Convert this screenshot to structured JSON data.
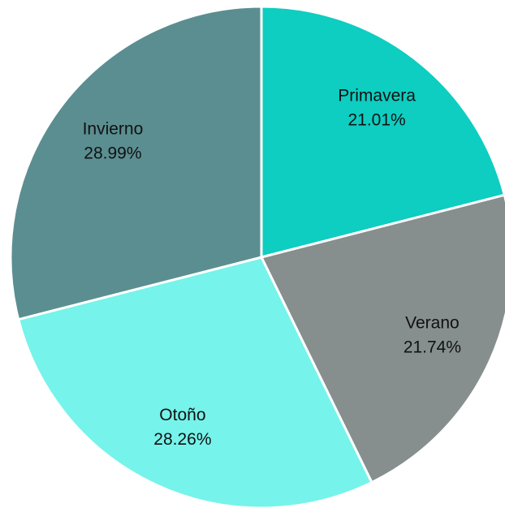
{
  "chart_data": {
    "type": "pie",
    "categories": [
      "Primavera",
      "Verano",
      "Otoño",
      "Invierno"
    ],
    "values": [
      21.01,
      21.74,
      28.26,
      28.99
    ],
    "value_labels": [
      "21.01%",
      "21.74%",
      "28.26%",
      "28.99%"
    ],
    "colors": [
      "#0ecdc1",
      "#868f8e",
      "#76f3ea",
      "#5b8e91"
    ]
  }
}
